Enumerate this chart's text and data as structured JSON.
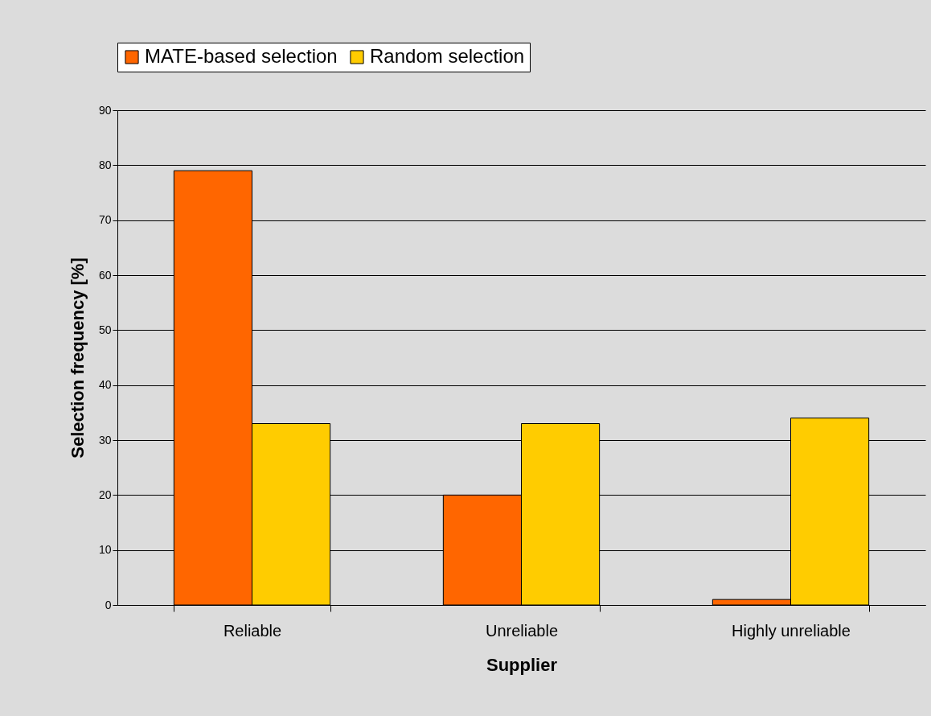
{
  "chart_data": {
    "type": "bar",
    "xlabel": "Supplier",
    "ylabel": "Selection frequency [%]",
    "categories": [
      "Reliable",
      "Unreliable",
      "Highly unreliable"
    ],
    "series": [
      {
        "name": "MATE-based selection",
        "color": "#ff6600",
        "values": [
          79,
          20,
          1
        ]
      },
      {
        "name": "Random selection",
        "color": "#ffcc00",
        "values": [
          33,
          33,
          34
        ]
      }
    ],
    "ylim": [
      0,
      90
    ],
    "yticks": [
      0,
      10,
      20,
      30,
      40,
      50,
      60,
      70,
      80,
      90
    ],
    "grid": "y",
    "legend": "top"
  }
}
